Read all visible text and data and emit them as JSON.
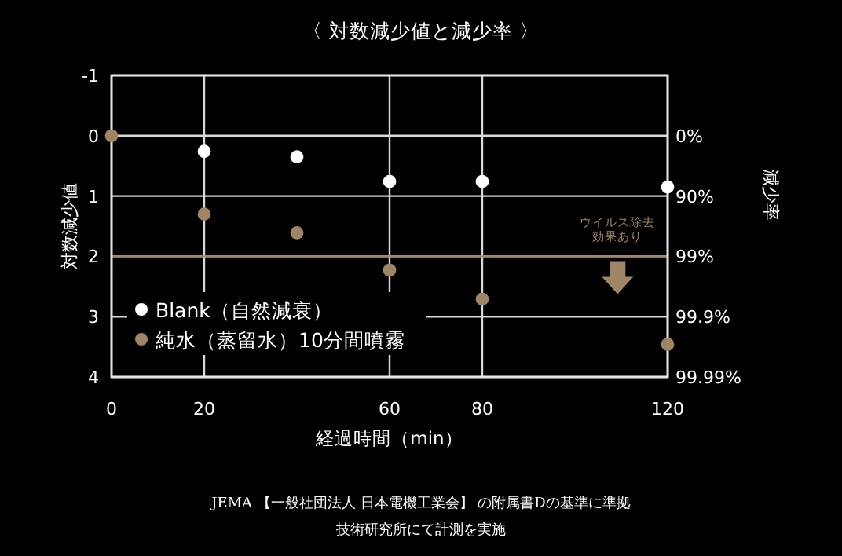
{
  "chart_data": {
    "type": "scatter",
    "title": "〈 対数減少値と減少率 〉",
    "xlabel": "経過時間（min）",
    "ylabel": "対数減少値",
    "y2label": "減少率",
    "xlim": [
      0,
      120
    ],
    "xticks": [
      0,
      20,
      60,
      80,
      120
    ],
    "ylim": [
      4,
      -1
    ],
    "yticks": [
      -1,
      0,
      1,
      2,
      3,
      4
    ],
    "y2_categories": [
      null,
      "0%",
      "90%",
      "99%",
      "99.9%",
      "99.99%"
    ],
    "grid": true,
    "legend": "bottom left",
    "marker": "circle",
    "ref_lines": [
      {
        "axis": "y",
        "value": 2,
        "label": "ウイルス除去効果あり",
        "color": "#9e8563"
      }
    ],
    "series": [
      {
        "name": "Blank（自然減衰）",
        "color": "#ffffff",
        "x": [
          20,
          40,
          60,
          80,
          120
        ],
        "values": [
          0.26,
          0.35,
          0.76,
          0.76,
          0.85
        ]
      },
      {
        "name": "純水（蒸留水）10分間噴霧",
        "color": "#9e8563",
        "x": [
          0,
          20,
          40,
          60,
          80,
          120
        ],
        "values": [
          0,
          1.3,
          1.61,
          2.23,
          2.71,
          3.46
        ]
      }
    ],
    "annotations": [
      "JEMA 【一般社団法人 日本電機工業会】 の附属書Dの基準に準拠",
      "技術研究所にて計測を実施"
    ]
  }
}
